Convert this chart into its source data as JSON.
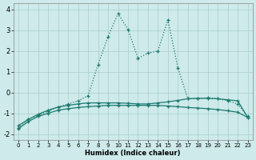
{
  "title": "",
  "xlabel": "Humidex (Indice chaleur)",
  "ylabel": "",
  "background_color": "#ceeaea",
  "grid_color": "#aacccc",
  "line_color": "#1a7a6e",
  "xlim": [
    -0.5,
    23.5
  ],
  "ylim": [
    -2.3,
    4.3
  ],
  "yticks": [
    -2,
    -1,
    0,
    1,
    2,
    3,
    4
  ],
  "xticks": [
    0,
    1,
    2,
    3,
    4,
    5,
    6,
    7,
    8,
    9,
    10,
    11,
    12,
    13,
    14,
    15,
    16,
    17,
    18,
    19,
    20,
    21,
    22,
    23
  ],
  "line_main_x": [
    0,
    1,
    2,
    3,
    4,
    5,
    6,
    7,
    8,
    9,
    10,
    11,
    12,
    13,
    14,
    15,
    16,
    17,
    18,
    19,
    20,
    21,
    22,
    23
  ],
  "line_main_y": [
    -1.7,
    -1.3,
    -1.1,
    -0.9,
    -0.7,
    -0.55,
    -0.4,
    -0.15,
    1.35,
    2.7,
    3.8,
    3.05,
    1.65,
    1.9,
    2.0,
    3.5,
    1.2,
    -0.3,
    -0.3,
    -0.25,
    -0.3,
    -0.4,
    -0.55,
    -1.15
  ],
  "line_flat1_x": [
    0,
    1,
    2,
    3,
    4,
    5,
    6,
    7,
    8,
    9,
    10,
    11,
    12,
    13,
    14,
    15,
    16,
    17,
    18,
    19,
    20,
    21,
    22,
    23
  ],
  "line_flat1_y": [
    -1.6,
    -1.3,
    -1.05,
    -0.85,
    -0.7,
    -0.62,
    -0.55,
    -0.5,
    -0.5,
    -0.5,
    -0.5,
    -0.52,
    -0.55,
    -0.55,
    -0.5,
    -0.45,
    -0.38,
    -0.3,
    -0.28,
    -0.28,
    -0.3,
    -0.35,
    -0.4,
    -1.2
  ],
  "line_flat2_x": [
    0,
    1,
    2,
    3,
    4,
    5,
    6,
    7,
    8,
    9,
    10,
    11,
    12,
    13,
    14,
    15,
    16,
    17,
    18,
    19,
    20,
    21,
    22,
    23
  ],
  "line_flat2_y": [
    -1.75,
    -1.4,
    -1.15,
    -1.0,
    -0.85,
    -0.78,
    -0.72,
    -0.68,
    -0.65,
    -0.62,
    -0.62,
    -0.62,
    -0.62,
    -0.62,
    -0.62,
    -0.65,
    -0.68,
    -0.72,
    -0.75,
    -0.78,
    -0.82,
    -0.88,
    -0.95,
    -1.2
  ]
}
